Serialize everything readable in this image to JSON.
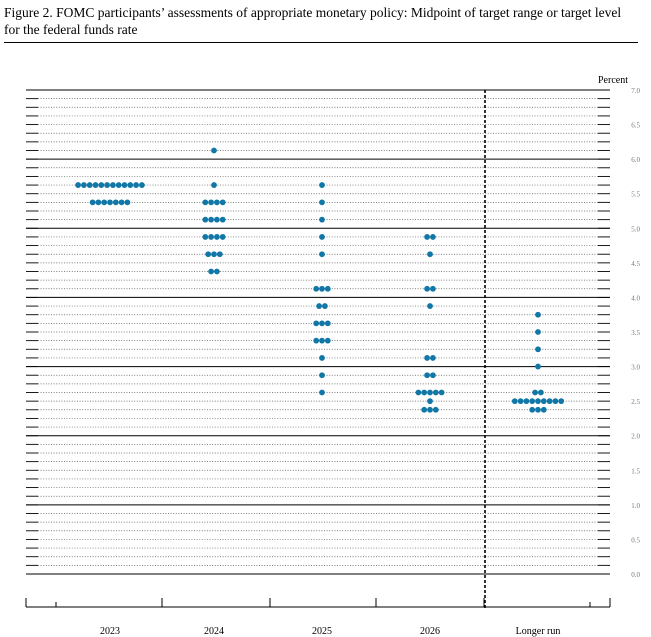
{
  "title": "Figure 2.  FOMC participants’ assessments of appropriate monetary policy:  Midpoint of target range or target level for the federal funds rate",
  "chart_data": {
    "type": "scatter",
    "subtype": "dot-plot",
    "title": "Figure 2.  FOMC participants’ assessments of appropriate monetary policy:  Midpoint of target range or target level for the federal funds rate",
    "ylabel": "Percent",
    "ylim": [
      0,
      7
    ],
    "yticks": [
      "7.0",
      "6.5",
      "6.0",
      "5.5",
      "5.0",
      "4.5",
      "4.0",
      "3.5",
      "3.0",
      "2.5",
      "2.0",
      "1.5",
      "1.0",
      "0.5",
      "0.0"
    ],
    "categories": [
      "2023",
      "2024",
      "2025",
      "2026",
      "Longer run"
    ],
    "dot_color": "#1177a6",
    "series": [
      {
        "category": "2023",
        "counts": [
          {
            "y": 5.625,
            "n": 12
          },
          {
            "y": 5.375,
            "n": 7
          }
        ]
      },
      {
        "category": "2024",
        "counts": [
          {
            "y": 6.125,
            "n": 1
          },
          {
            "y": 5.625,
            "n": 1
          },
          {
            "y": 5.375,
            "n": 4
          },
          {
            "y": 5.125,
            "n": 4
          },
          {
            "y": 4.875,
            "n": 4
          },
          {
            "y": 4.625,
            "n": 3
          },
          {
            "y": 4.375,
            "n": 2
          }
        ]
      },
      {
        "category": "2025",
        "counts": [
          {
            "y": 5.625,
            "n": 1
          },
          {
            "y": 5.375,
            "n": 1
          },
          {
            "y": 5.125,
            "n": 1
          },
          {
            "y": 4.875,
            "n": 1
          },
          {
            "y": 4.625,
            "n": 1
          },
          {
            "y": 4.125,
            "n": 3
          },
          {
            "y": 3.875,
            "n": 2
          },
          {
            "y": 3.625,
            "n": 3
          },
          {
            "y": 3.375,
            "n": 3
          },
          {
            "y": 3.125,
            "n": 1
          },
          {
            "y": 2.875,
            "n": 1
          },
          {
            "y": 2.625,
            "n": 1
          }
        ]
      },
      {
        "category": "2026",
        "counts": [
          {
            "y": 4.875,
            "n": 2
          },
          {
            "y": 4.625,
            "n": 1
          },
          {
            "y": 4.125,
            "n": 2
          },
          {
            "y": 3.875,
            "n": 1
          },
          {
            "y": 3.125,
            "n": 2
          },
          {
            "y": 2.875,
            "n": 2
          },
          {
            "y": 2.625,
            "n": 5
          },
          {
            "y": 2.5,
            "n": 1
          },
          {
            "y": 2.375,
            "n": 3
          }
        ]
      },
      {
        "category": "Longer run",
        "counts": [
          {
            "y": 3.75,
            "n": 1
          },
          {
            "y": 3.5,
            "n": 1
          },
          {
            "y": 3.25,
            "n": 1
          },
          {
            "y": 3.0,
            "n": 1
          },
          {
            "y": 2.625,
            "n": 2
          },
          {
            "y": 2.5,
            "n": 9
          },
          {
            "y": 2.375,
            "n": 3
          }
        ]
      }
    ],
    "separator_before": "Longer run",
    "grid": true,
    "legend": "none"
  }
}
